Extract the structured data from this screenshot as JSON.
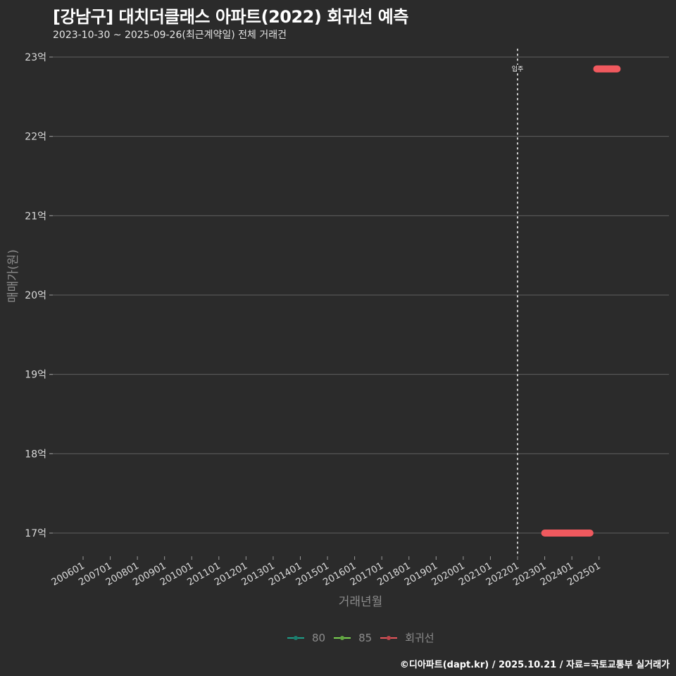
{
  "header": {
    "title": "[강남구] 대치더클래스 아파트(2022) 회귀선 예측",
    "subtitle": "2023-10-30 ~ 2025-09-26(최근계약일) 전체 거래건"
  },
  "axes": {
    "ylabel": "매매가(원)",
    "xlabel": "거래년월",
    "annotation": "입주"
  },
  "legend": {
    "items": [
      {
        "label": "80",
        "color": "#1f9e89"
      },
      {
        "label": "85",
        "color": "#7ad151"
      },
      {
        "label": "회귀선",
        "color": "#e8565c"
      }
    ]
  },
  "footer": "©디아파트(dapt.kr) / 2025.10.21 / 자료=국토교통부 실거래가",
  "colors": {
    "background": "#2b2b2b",
    "grid": "#5a5a5a",
    "regression": "#f0595e"
  },
  "chart_data": {
    "type": "line",
    "title": "[강남구] 대치더클래스 아파트(2022) 회귀선 예측",
    "subtitle": "2023-10-30 ~ 2025-09-26(최근계약일) 전체 거래건",
    "xlabel": "거래년월",
    "ylabel": "매매가(원)",
    "categories": [
      "200601",
      "200701",
      "200801",
      "200901",
      "201001",
      "201101",
      "201201",
      "201301",
      "201401",
      "201501",
      "201601",
      "201701",
      "201801",
      "201901",
      "202001",
      "202101",
      "202201",
      "202301",
      "202401",
      "202501"
    ],
    "y_ticks": [
      "17억",
      "18억",
      "19억",
      "20억",
      "21억",
      "22억",
      "23억"
    ],
    "ylim": [
      16.8,
      23.1
    ],
    "grid": "horizontal",
    "legend_position": "bottom",
    "vline": {
      "x": "202201",
      "label": "입주",
      "style": "dotted"
    },
    "series": [
      {
        "name": "80",
        "values": []
      },
      {
        "name": "85",
        "values": []
      },
      {
        "name": "회귀선",
        "segments": [
          {
            "x_start": "2023-01",
            "x_end": "2024-09",
            "y": 17.0
          },
          {
            "x_start": "2024-12",
            "x_end": "2025-09",
            "y": 22.85
          }
        ]
      }
    ]
  }
}
